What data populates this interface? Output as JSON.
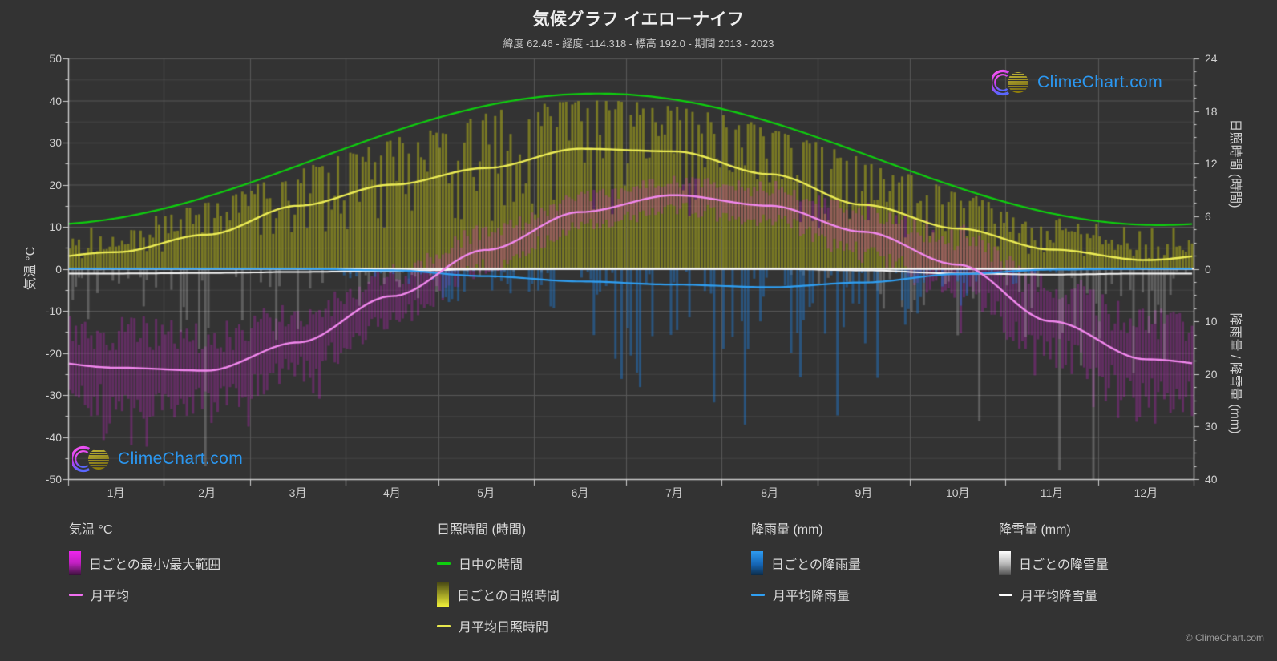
{
  "header": {
    "title": "気候グラフ イエローナイフ",
    "subtitle": "緯度 62.46 - 経度 -114.318 - 標高 192.0 - 期間 2013 - 2023"
  },
  "watermark": {
    "brand": "ClimeChart.com"
  },
  "footer": {
    "copyright": "© ClimeChart.com"
  },
  "axes": {
    "temp": {
      "title": "気温 °C",
      "ticks": [
        "50",
        "40",
        "30",
        "20",
        "10",
        "0",
        "-10",
        "-20",
        "-30",
        "-40",
        "-50"
      ]
    },
    "sun": {
      "title": "日照時間 (時間)",
      "ticks": [
        "24",
        "18",
        "12",
        "6",
        "0"
      ]
    },
    "precip": {
      "title": "降雨量 / 降雪量 (mm)",
      "ticks": [
        "10",
        "20",
        "30",
        "40"
      ]
    },
    "months": [
      "1月",
      "2月",
      "3月",
      "4月",
      "5月",
      "6月",
      "7月",
      "8月",
      "9月",
      "10月",
      "11月",
      "12月"
    ]
  },
  "legend": {
    "temp": {
      "title": "気温 °C",
      "range_label": "日ごとの最小/最大範囲",
      "mean_label": "月平均"
    },
    "sun": {
      "title": "日照時間 (時間)",
      "daylight_label": "日中の時間",
      "daily_label": "日ごとの日照時間",
      "mean_label": "月平均日照時間"
    },
    "rain": {
      "title": "降雨量 (mm)",
      "daily_label": "日ごとの降雨量",
      "mean_label": "月平均降雨量"
    },
    "snow": {
      "title": "降雪量 (mm)",
      "daily_label": "日ごとの降雪量",
      "mean_label": "月平均降雪量"
    }
  },
  "colors": {
    "background": "#333333",
    "grid_major": "#585858",
    "grid_minor": "#464646",
    "axis_line": "#cccccc",
    "zero_line": "#ffffff",
    "daylight_line": "#0ecf0e",
    "sunshine_line": "#ecec55",
    "temp_mean_line": "#f288ee",
    "rain_line": "#2f9ff2",
    "snow_line": "#f5f5f5",
    "sunshine_bar": "#b3b318",
    "temp_range_bar": "#e01fe0",
    "rain_bar": "#2176c8",
    "snow_bar": "#d0d0d0",
    "brand_blue": "#2b97f0"
  },
  "chart_data": {
    "type": "line",
    "title": "気候グラフ イエローナイフ",
    "categories": [
      "1月",
      "2月",
      "3月",
      "4月",
      "5月",
      "6月",
      "7月",
      "8月",
      "9月",
      "10月",
      "11月",
      "12月"
    ],
    "axis": {
      "temp_axis": {
        "label": "気温 °C",
        "range": [
          -50,
          50
        ],
        "ticks_every": 10
      },
      "sun_axis": {
        "label": "日照時間 (時間)",
        "range": [
          0,
          24
        ],
        "ticks_every": 6
      },
      "precip_axis": {
        "label": "降雨量 / 降雪量 (mm)",
        "range": [
          0,
          40
        ],
        "ticks_every": 10,
        "direction": "down"
      },
      "grid": true,
      "legend_position": "bottom"
    },
    "series": [
      {
        "name": "月平均",
        "unit": "°C",
        "style": "line",
        "color": "#f288ee",
        "values": [
          -23.5,
          -24.2,
          -17.5,
          -6.5,
          4.5,
          13.5,
          17.5,
          15.0,
          8.8,
          1.0,
          -12.5,
          -21.5
        ]
      },
      {
        "name": "日中の時間",
        "unit": "時間",
        "style": "line",
        "color": "#0ecf0e",
        "values": [
          6.1,
          9.0,
          11.9,
          15.0,
          17.9,
          19.9,
          19.1,
          16.3,
          13.2,
          10.2,
          7.2,
          5.1
        ]
      },
      {
        "name": "月平均日照時間",
        "unit": "時間",
        "style": "line",
        "color": "#ecec55",
        "values": [
          1.9,
          3.9,
          7.2,
          9.6,
          11.5,
          13.7,
          13.4,
          10.8,
          7.3,
          4.6,
          2.2,
          1.0
        ]
      },
      {
        "name": "月平均降雨量",
        "unit": "mm",
        "style": "line",
        "color": "#2f9ff2",
        "values": [
          0,
          0,
          0,
          0.3,
          1.4,
          2.4,
          3.0,
          3.5,
          2.6,
          1.0,
          0.15,
          0
        ]
      },
      {
        "name": "月平均降雪量",
        "unit": "mm",
        "style": "line",
        "color": "#f5f5f5",
        "values": [
          0.9,
          0.8,
          0.6,
          0.4,
          0.1,
          0,
          0,
          0,
          0.3,
          0.9,
          1.1,
          0.9
        ]
      }
    ],
    "daily_bands": [
      {
        "name": "日ごとの最小/最大範囲",
        "axis": "temp_axis",
        "color": "#e01fe0",
        "opacity": 0.28
      },
      {
        "name": "日ごとの日照時間",
        "axis": "sun_axis",
        "color": "#b3b318",
        "opacity": 0.55
      },
      {
        "name": "日ごとの降雨量",
        "axis": "precip_axis",
        "color": "#2176c8",
        "opacity": 0.5
      },
      {
        "name": "日ごとの降雪量",
        "axis": "precip_axis",
        "color": "#d0d0d0",
        "opacity": 0.28
      }
    ]
  }
}
